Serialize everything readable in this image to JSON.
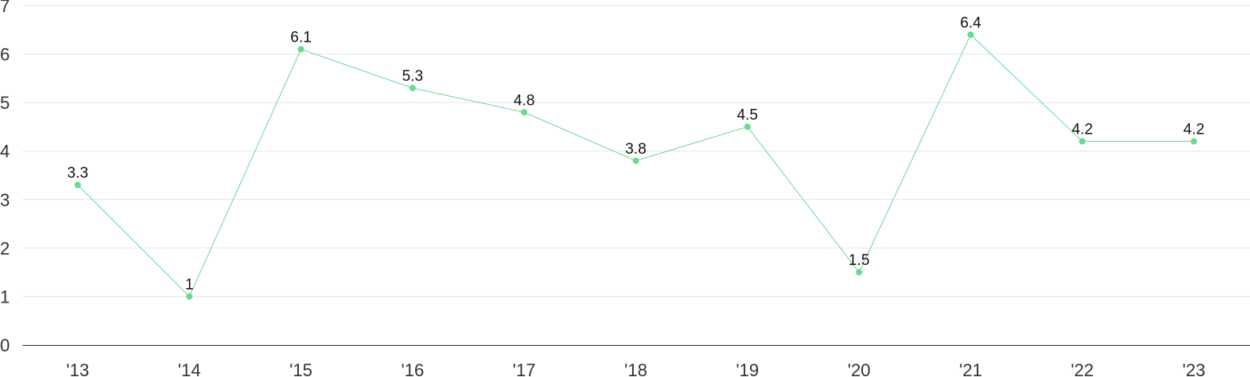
{
  "chart_data": {
    "type": "line",
    "title": "",
    "xlabel": "",
    "ylabel": "",
    "categories": [
      "'13",
      "'14",
      "'15",
      "'16",
      "'17",
      "'18",
      "'19",
      "'20",
      "'21",
      "'22",
      "'23"
    ],
    "series": [
      {
        "values": [
          3.3,
          1,
          6.1,
          5.3,
          4.8,
          3.8,
          4.5,
          1.5,
          6.4,
          4.2,
          4.2
        ],
        "labels": [
          "3.3",
          "1",
          "6.1",
          "5.3",
          "4.8",
          "3.8",
          "4.5",
          "1.5",
          "6.4",
          "4.2",
          "4.2"
        ],
        "color": "#6dd892"
      }
    ],
    "y_ticks": [
      "0",
      "1",
      "2",
      "3",
      "4",
      "5",
      "6",
      "7"
    ],
    "ylim": [
      0,
      7
    ],
    "grid": true,
    "legend": "none"
  },
  "colors": {
    "line": "#6dd892",
    "point": "#6dd892",
    "grid": "#e6e6e6",
    "axis": "#333333"
  }
}
